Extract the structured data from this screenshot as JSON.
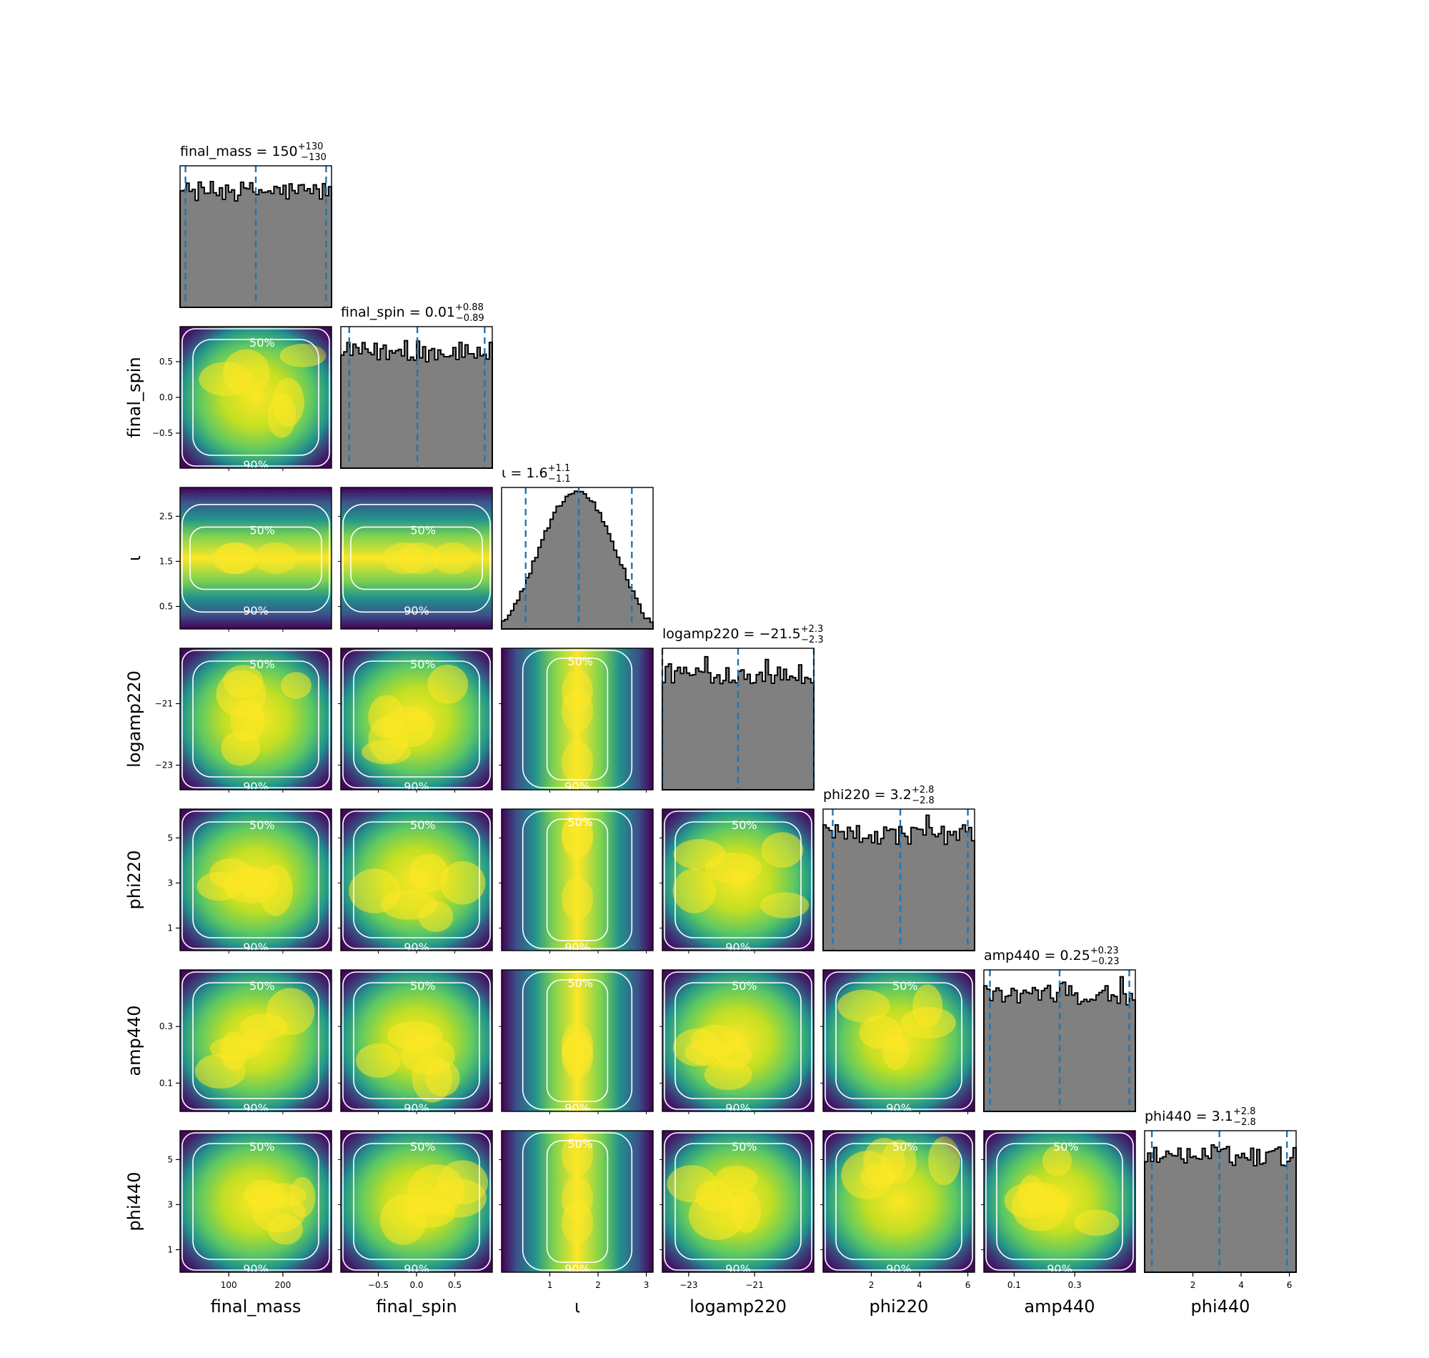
{
  "chart_data": {
    "type": "corner",
    "parameters": [
      "final_mass",
      "final_spin",
      "ι",
      "logamp220",
      "phi220",
      "amp440",
      "phi440"
    ],
    "axis_labels": [
      "final_mass",
      "final_spin",
      "ι",
      "logamp220",
      "phi220",
      "amp440",
      "phi440"
    ],
    "ranges": [
      [
        10,
        290
      ],
      [
        -0.99,
        0.99
      ],
      [
        0.0,
        3.14
      ],
      [
        -23.8,
        -19.2
      ],
      [
        0.0,
        6.28
      ],
      [
        0.0,
        0.5
      ],
      [
        0.0,
        6.28
      ]
    ],
    "ticks": [
      [
        {
          "v": 100,
          "t": "100"
        },
        {
          "v": 200,
          "t": "200"
        }
      ],
      [
        {
          "v": -0.5,
          "t": "−0.5"
        },
        {
          "v": 0.0,
          "t": "0.0"
        },
        {
          "v": 0.5,
          "t": "0.5"
        }
      ],
      [
        {
          "v": 1,
          "t": "1"
        },
        {
          "v": 2,
          "t": "2"
        },
        {
          "v": 3,
          "t": "3"
        }
      ],
      [
        {
          "v": -23,
          "t": "−23"
        },
        {
          "v": -21,
          "t": "−21"
        }
      ],
      [
        {
          "v": 2,
          "t": "2"
        },
        {
          "v": 4,
          "t": "4"
        },
        {
          "v": 6,
          "t": "6"
        }
      ],
      [
        {
          "v": 0.1,
          "t": "0.1"
        },
        {
          "v": 0.3,
          "t": "0.3"
        }
      ],
      [
        {
          "v": 2,
          "t": "2"
        },
        {
          "v": 4,
          "t": "4"
        },
        {
          "v": 6,
          "t": "6"
        }
      ]
    ],
    "yticks": [
      [],
      [
        {
          "v": -0.5,
          "t": "−0.5"
        },
        {
          "v": 0.0,
          "t": "0.0"
        },
        {
          "v": 0.5,
          "t": "0.5"
        }
      ],
      [
        {
          "v": 0.5,
          "t": "0.5"
        },
        {
          "v": 1.5,
          "t": "1.5"
        },
        {
          "v": 2.5,
          "t": "2.5"
        }
      ],
      [
        {
          "v": -23,
          "t": "−23"
        },
        {
          "v": -21,
          "t": "−21"
        }
      ],
      [
        {
          "v": 1,
          "t": "1"
        },
        {
          "v": 3,
          "t": "3"
        },
        {
          "v": 5,
          "t": "5"
        }
      ],
      [
        {
          "v": 0.1,
          "t": "0.1"
        },
        {
          "v": 0.3,
          "t": "0.3"
        }
      ],
      [
        {
          "v": 1,
          "t": "1"
        },
        {
          "v": 3,
          "t": "3"
        },
        {
          "v": 5,
          "t": "5"
        }
      ]
    ],
    "titles": [
      {
        "prefix": "final_mass = 150",
        "plus": "+130",
        "minus": "−130"
      },
      {
        "prefix": "final_spin = 0.01",
        "plus": "+0.88",
        "minus": "−0.89"
      },
      {
        "prefix": "ι = 1.6",
        "plus": "+1.1",
        "minus": "−1.1"
      },
      {
        "prefix": "logamp220 = −21.5",
        "plus": "+2.3",
        "minus": "−2.3"
      },
      {
        "prefix": "phi220 = 3.2",
        "plus": "+2.8",
        "minus": "−2.8"
      },
      {
        "prefix": "amp440 = 0.25",
        "plus": "+0.23",
        "minus": "−0.23"
      },
      {
        "prefix": "phi440 = 3.1",
        "plus": "+2.8",
        "minus": "−2.8"
      }
    ],
    "quantiles": [
      [
        20,
        150,
        280
      ],
      [
        -0.88,
        0.01,
        0.89
      ],
      [
        0.5,
        1.6,
        2.7
      ],
      [
        -23.8,
        -21.5,
        -19.2
      ],
      [
        0.4,
        3.2,
        6.0
      ],
      [
        0.02,
        0.25,
        0.48
      ],
      [
        0.3,
        3.1,
        5.9
      ]
    ],
    "histogram_shapes": [
      "uniform",
      "uniform",
      "sine",
      "uniform",
      "uniform",
      "uniform",
      "uniform"
    ],
    "contour_levels": [
      "50%",
      "90%"
    ],
    "colormap": "viridis",
    "colors": {
      "hist_fill": "#808080",
      "hist_edge": "#000000",
      "quantile_line": "#1f77b4",
      "contour": "#ffffff"
    }
  }
}
